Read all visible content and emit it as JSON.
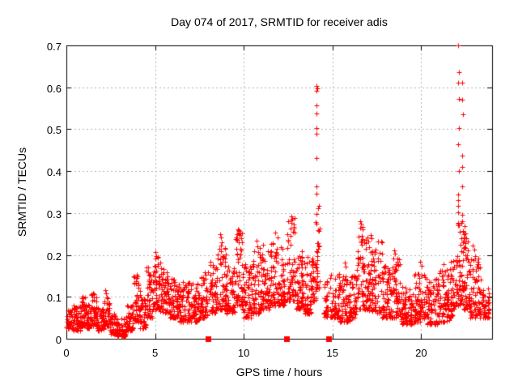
{
  "chart_data": {
    "type": "scatter",
    "title": "Day 074 of 2017, SRMTID for receiver adis",
    "xlabel": "GPS time / hours",
    "ylabel": "SRMTID / TECUs",
    "xlim": [
      0,
      24
    ],
    "ylim": [
      0,
      0.7
    ],
    "xticks": [
      0,
      5,
      10,
      15,
      20
    ],
    "xtick_labels": [
      "0",
      "5",
      "10",
      "15",
      "20"
    ],
    "yticks": [
      0,
      0.1,
      0.2,
      0.3,
      0.4,
      0.5,
      0.6,
      0.7
    ],
    "ytick_labels": [
      "0",
      "0.1",
      "0.2",
      "0.3",
      "0.4",
      "0.5",
      "0.6",
      "0.7"
    ],
    "grid": true,
    "legend": "none",
    "marker": "plus-icon",
    "marker_color": "#ff0000",
    "axis_marker": "filled-square-icon",
    "axis_marker_color": "#ff0000",
    "axis_markers_x": [
      8.0,
      12.4,
      14.8
    ],
    "seed": 74,
    "band_segments": [
      [
        0.0,
        0.35,
        0.025,
        0.075,
        45
      ],
      [
        0.35,
        0.8,
        0.02,
        0.08,
        55
      ],
      [
        0.8,
        1.1,
        0.03,
        0.1,
        40
      ],
      [
        1.1,
        1.4,
        0.025,
        0.085,
        38
      ],
      [
        1.4,
        1.7,
        0.03,
        0.11,
        40
      ],
      [
        1.7,
        2.1,
        0.02,
        0.075,
        48
      ],
      [
        2.1,
        2.45,
        0.03,
        0.115,
        42
      ],
      [
        2.45,
        2.85,
        0.012,
        0.06,
        45
      ],
      [
        2.85,
        3.35,
        0.006,
        0.05,
        55
      ],
      [
        3.35,
        3.75,
        0.02,
        0.08,
        48
      ],
      [
        3.75,
        4.15,
        0.04,
        0.15,
        50
      ],
      [
        4.15,
        4.5,
        0.025,
        0.1,
        42
      ],
      [
        4.5,
        4.85,
        0.05,
        0.175,
        45
      ],
      [
        4.85,
        5.3,
        0.07,
        0.2,
        55
      ],
      [
        5.3,
        5.8,
        0.06,
        0.17,
        60
      ],
      [
        5.8,
        6.4,
        0.05,
        0.15,
        70
      ],
      [
        6.4,
        7.0,
        0.04,
        0.14,
        70
      ],
      [
        7.0,
        7.6,
        0.04,
        0.135,
        70
      ],
      [
        7.6,
        7.97,
        0.05,
        0.16,
        45
      ],
      [
        8.05,
        8.5,
        0.06,
        0.185,
        55
      ],
      [
        8.5,
        9.0,
        0.07,
        0.245,
        62
      ],
      [
        9.0,
        9.5,
        0.06,
        0.175,
        60
      ],
      [
        9.5,
        9.95,
        0.08,
        0.265,
        58
      ],
      [
        9.95,
        10.45,
        0.05,
        0.18,
        60
      ],
      [
        10.45,
        10.9,
        0.06,
        0.225,
        55
      ],
      [
        10.9,
        11.45,
        0.07,
        0.21,
        65
      ],
      [
        11.45,
        11.95,
        0.08,
        0.245,
        62
      ],
      [
        11.95,
        12.35,
        0.08,
        0.22,
        50
      ],
      [
        12.45,
        12.95,
        0.09,
        0.29,
        62
      ],
      [
        12.95,
        13.45,
        0.07,
        0.215,
        60
      ],
      [
        13.45,
        13.85,
        0.06,
        0.19,
        50
      ],
      [
        13.85,
        14.05,
        0.09,
        0.22,
        26
      ],
      [
        14.05,
        14.28,
        0.12,
        0.335,
        34
      ],
      [
        14.5,
        14.78,
        0.05,
        0.145,
        30
      ],
      [
        14.86,
        15.4,
        0.05,
        0.155,
        62
      ],
      [
        15.4,
        16.0,
        0.04,
        0.15,
        70
      ],
      [
        16.0,
        16.4,
        0.05,
        0.165,
        48
      ],
      [
        16.4,
        17.0,
        0.07,
        0.27,
        75
      ],
      [
        17.0,
        17.8,
        0.06,
        0.235,
        90
      ],
      [
        17.8,
        18.3,
        0.05,
        0.175,
        58
      ],
      [
        18.3,
        18.8,
        0.05,
        0.2,
        58
      ],
      [
        18.8,
        19.6,
        0.035,
        0.13,
        90
      ],
      [
        19.6,
        20.3,
        0.04,
        0.155,
        80
      ],
      [
        20.3,
        21.0,
        0.035,
        0.145,
        80
      ],
      [
        21.0,
        21.6,
        0.04,
        0.165,
        70
      ],
      [
        21.6,
        21.95,
        0.05,
        0.19,
        42
      ],
      [
        21.95,
        22.4,
        0.08,
        0.28,
        60
      ],
      [
        22.4,
        22.75,
        0.07,
        0.25,
        45
      ],
      [
        22.75,
        23.4,
        0.05,
        0.2,
        75
      ],
      [
        23.4,
        23.85,
        0.05,
        0.13,
        45
      ]
    ],
    "outliers": [
      [
        14.1,
        0.603
      ],
      [
        14.13,
        0.597
      ],
      [
        14.08,
        0.591
      ],
      [
        14.1,
        0.556
      ],
      [
        14.09,
        0.538
      ],
      [
        14.11,
        0.503
      ],
      [
        14.1,
        0.49
      ],
      [
        14.09,
        0.432
      ],
      [
        14.12,
        0.363
      ],
      [
        14.1,
        0.346
      ],
      [
        22.1,
        0.7
      ],
      [
        22.12,
        0.636
      ],
      [
        22.09,
        0.612
      ],
      [
        22.29,
        0.612
      ],
      [
        22.11,
        0.573
      ],
      [
        22.31,
        0.571
      ],
      [
        22.34,
        0.536
      ],
      [
        22.12,
        0.503
      ],
      [
        22.1,
        0.464
      ],
      [
        22.32,
        0.437
      ],
      [
        22.33,
        0.41
      ],
      [
        22.11,
        0.4
      ],
      [
        22.32,
        0.363
      ],
      [
        22.1,
        0.345
      ],
      [
        22.08,
        0.331
      ],
      [
        22.09,
        0.317
      ],
      [
        22.1,
        0.302
      ],
      [
        22.31,
        0.296
      ],
      [
        22.33,
        0.281
      ],
      [
        22.12,
        0.27
      ],
      [
        22.36,
        0.258
      ],
      [
        22.44,
        0.268
      ],
      [
        22.5,
        0.252
      ],
      [
        22.56,
        0.24
      ],
      [
        22.62,
        0.232
      ],
      [
        9.68,
        0.262
      ],
      [
        9.73,
        0.258
      ],
      [
        9.64,
        0.25
      ],
      [
        9.78,
        0.248
      ],
      [
        8.66,
        0.25
      ],
      [
        8.7,
        0.242
      ],
      [
        12.68,
        0.292
      ],
      [
        12.73,
        0.287
      ],
      [
        12.7,
        0.276
      ],
      [
        12.66,
        0.263
      ],
      [
        12.76,
        0.255
      ],
      [
        11.75,
        0.253
      ],
      [
        10.72,
        0.234
      ],
      [
        11.1,
        0.225
      ],
      [
        16.58,
        0.281
      ],
      [
        16.63,
        0.274
      ],
      [
        16.68,
        0.266
      ],
      [
        17.15,
        0.247
      ],
      [
        17.22,
        0.24
      ],
      [
        18.48,
        0.21
      ],
      [
        18.53,
        0.203
      ],
      [
        15.68,
        0.181
      ],
      [
        15.74,
        0.172
      ],
      [
        19.95,
        0.183
      ],
      [
        20.05,
        0.175
      ],
      [
        21.25,
        0.178
      ],
      [
        22.9,
        0.222
      ],
      [
        23.0,
        0.212
      ],
      [
        2.2,
        0.116
      ],
      [
        1.52,
        0.108
      ],
      [
        0.9,
        0.101
      ],
      [
        5.0,
        0.206
      ],
      [
        5.08,
        0.198
      ],
      [
        3.95,
        0.152
      ],
      [
        4.02,
        0.148
      ],
      [
        13.6,
        0.196
      ]
    ]
  }
}
